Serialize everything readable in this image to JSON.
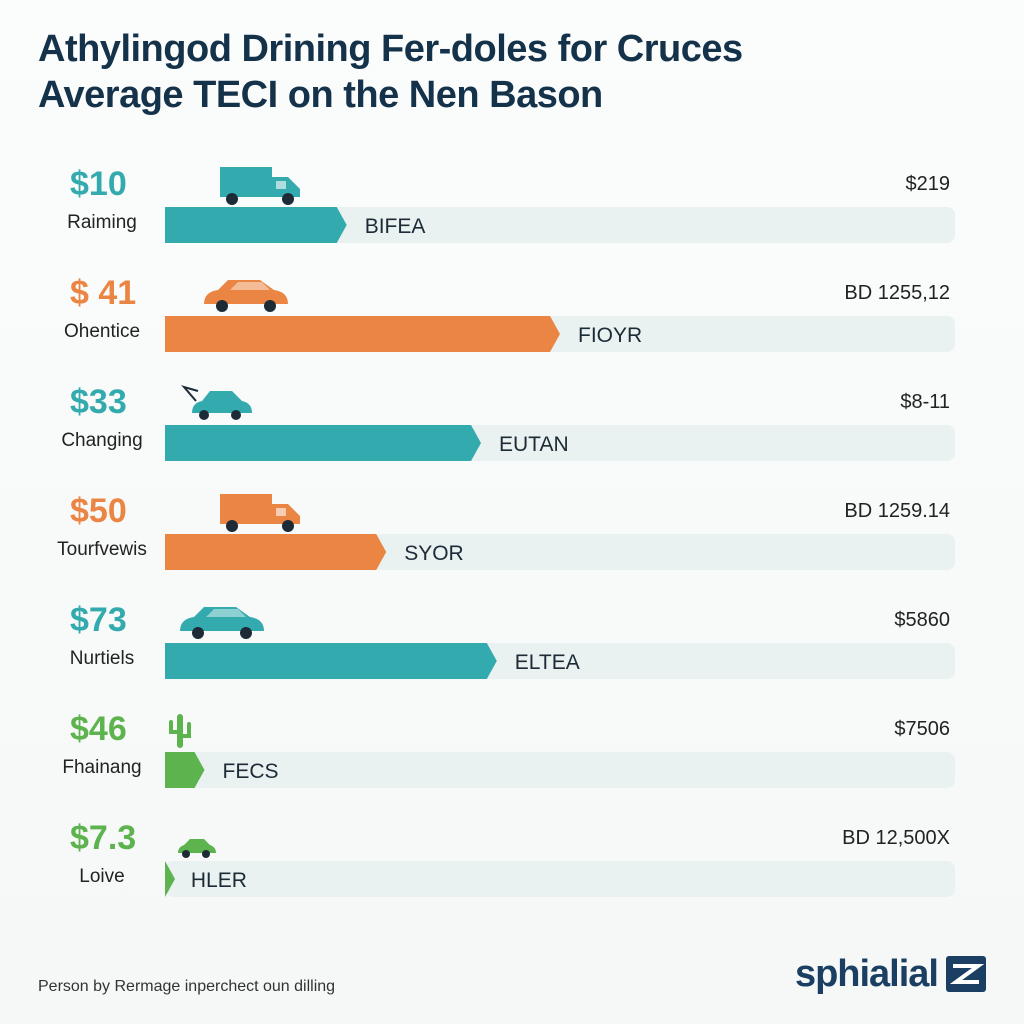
{
  "title": {
    "line1": "Athylingod Drining Fer-doles for Cruces",
    "line2": "Average TECI on the Nen Bason"
  },
  "chart_data": {
    "type": "bar",
    "orientation": "horizontal",
    "scale_max": 100,
    "rows": [
      {
        "price": "$10",
        "category": "Raiming",
        "bar_label": "BIFEA",
        "right_value": "$219",
        "fill": 23,
        "color": "#33aaad",
        "icon": "truck-icon"
      },
      {
        "price": "$ 41",
        "category": "Ohentice",
        "bar_label": "FIOYR",
        "right_value": "BD 1255,12",
        "fill": 50,
        "color": "#ea8543",
        "icon": "car-icon"
      },
      {
        "price": "$33",
        "category": "Changing",
        "bar_label": "EUTAN",
        "right_value": "$8-11",
        "fill": 40,
        "color": "#33aaad",
        "icon": "car-open-hood-icon"
      },
      {
        "price": "$50",
        "category": "Tourfvewis",
        "bar_label": "SYOR",
        "right_value": "BD 1259.14",
        "fill": 28,
        "color": "#ea8543",
        "icon": "truck-icon"
      },
      {
        "price": "$73",
        "category": "Nurtiels",
        "bar_label": "ELTEA",
        "right_value": "$5860",
        "fill": 42,
        "color": "#33aaad",
        "icon": "sedan-icon"
      },
      {
        "price": "$46",
        "category": "Fhainang",
        "bar_label": "FECS",
        "right_value": "$7506",
        "fill": 5,
        "color": "#5db34e",
        "icon": "cactus-icon"
      },
      {
        "price": "$7.3",
        "category": "Loive",
        "bar_label": "HLER",
        "right_value": "BD 12,500X",
        "fill": 1,
        "color": "#5db34e",
        "icon": "small-car-icon"
      }
    ]
  },
  "footer": {
    "note": "Person by Rermage inperchect oun dilling",
    "brand": "sphialial"
  },
  "colors": {
    "track": "#e9f1f1",
    "title": "#14324a",
    "brand": "#1b3f63"
  }
}
